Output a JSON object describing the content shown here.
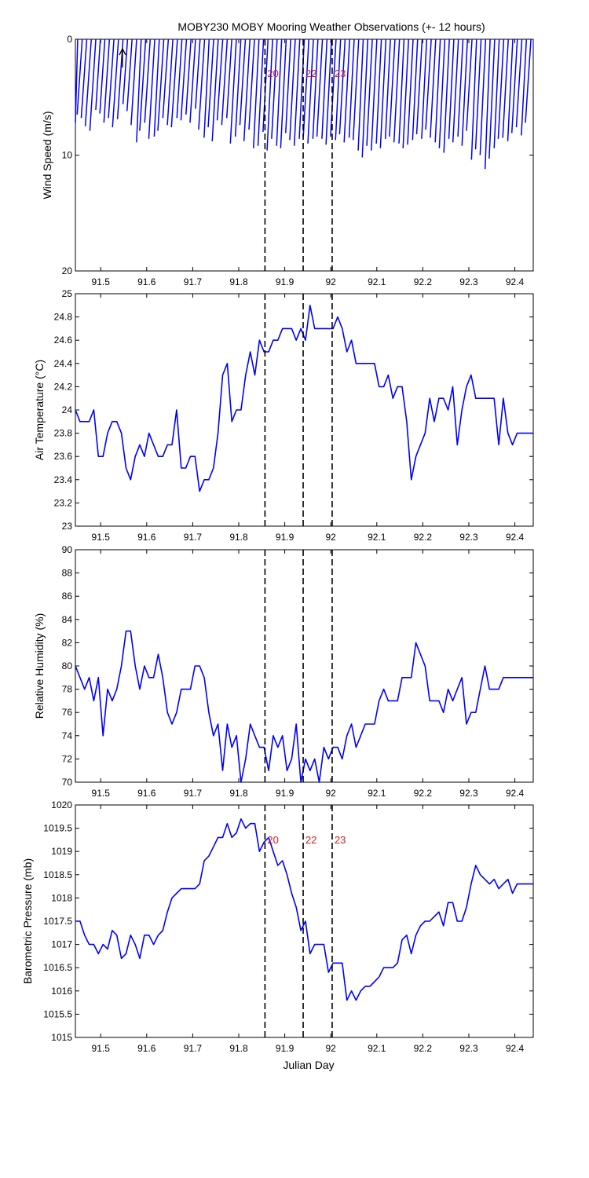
{
  "figure": {
    "title": "MOBY230 MOBY Mooring Weather Observations (+- 12 hours)",
    "xlabel": "Julian Day"
  },
  "colors": {
    "series": "#0000ff",
    "marker": "#000000",
    "marker_label": "#cc2222"
  },
  "chart_data": [
    {
      "type": "line",
      "name": "wind",
      "ylabel": "Wind Speed (m/s)",
      "xlim": [
        91.445,
        92.44
      ],
      "ylim": [
        0,
        20
      ],
      "y_reversed": true,
      "yticks": [
        "0",
        "10",
        "20"
      ],
      "xticks": [
        "91.5",
        "91.6",
        "91.7",
        "91.8",
        "91.9",
        "92",
        "92.1",
        "92.2",
        "92.3",
        "92.4"
      ],
      "wind_speed": [
        7.2,
        6.5,
        6.8,
        7.5,
        7.9,
        6.1,
        6.4,
        7.2,
        6.8,
        7.6,
        6.9,
        5.6,
        6.2,
        7.4,
        8.9,
        7.9,
        7.2,
        8.6,
        8.4,
        7.9,
        6.8,
        7.4,
        7.6,
        6.8,
        7.0,
        6.5,
        7.2,
        6.0,
        7.8,
        8.5,
        7.6,
        8.8,
        7.0,
        7.4,
        6.8,
        9.0,
        8.4,
        7.4,
        8.8,
        7.8,
        9.4,
        9.2,
        8.0,
        9.6,
        8.6,
        9.2,
        9.4,
        8.1,
        8.7,
        9.2,
        8.6,
        8.4,
        9.0,
        8.6,
        8.4,
        8.6,
        9.1,
        8.4,
        8.7,
        8.2,
        8.9,
        8.5,
        8.7,
        9.6,
        10.2,
        9.2,
        9.6,
        9.0,
        9.4,
        8.6,
        8.4,
        8.9,
        9.0,
        9.4,
        9.1,
        8.7,
        8.2,
        8.6,
        7.8,
        8.5,
        8.9,
        9.4,
        9.8,
        8.6,
        8.9,
        8.4,
        9.2,
        7.9,
        10.4,
        9.5,
        10.0,
        11.2,
        10.3,
        9.4,
        8.6,
        8.5,
        8.8,
        8.1,
        7.6,
        8.3,
        7.2
      ],
      "wind_dir_shift": [
        0.011,
        0.011,
        0.012,
        0.013,
        0.013,
        0.01,
        0.011,
        0.012,
        0.012,
        0.013,
        0.012,
        0.01,
        0.011,
        0.012,
        0.01,
        0.013,
        0.012,
        0.013,
        0.011,
        0.013,
        0.012,
        0.012,
        0.013,
        0.011,
        0.012,
        0.011,
        0.012,
        0.01,
        0.013,
        0.011,
        0.012,
        0.013,
        0.012,
        0.012,
        0.011,
        0.013,
        0.012,
        0.012,
        0.013,
        0.012,
        0.012,
        0.012,
        0.011,
        0.012,
        0.012,
        0.011,
        0.012,
        0.011,
        0.012,
        0.012,
        0.011,
        0.012,
        0.012,
        0.011,
        0.012,
        0.011,
        0.012,
        0.012,
        0.011,
        0.012,
        0.012,
        0.011,
        0.012,
        0.011,
        0.012,
        0.012,
        0.012,
        0.011,
        0.012,
        0.011,
        0.012,
        0.012,
        0.011,
        0.012,
        0.012,
        0.011,
        0.012,
        0.011,
        0.012,
        0.012,
        0.011,
        0.012,
        0.012,
        0.011,
        0.012,
        0.011,
        0.012,
        0.012,
        0.011,
        0.012,
        0.012,
        0.011,
        0.012,
        0.011,
        0.012,
        0.012,
        0.011,
        0.012,
        0.012,
        0.011,
        0.012
      ]
    },
    {
      "type": "line",
      "name": "air-temperature",
      "ylabel": "Air Temperature (°C)",
      "xlim": [
        91.445,
        92.44
      ],
      "ylim": [
        23,
        25
      ],
      "yticks": [
        "23",
        "23.2",
        "23.4",
        "23.6",
        "23.8",
        "24",
        "24.2",
        "24.4",
        "24.6",
        "24.8",
        "25"
      ],
      "xticks": [
        "91.5",
        "91.6",
        "91.7",
        "91.8",
        "91.9",
        "92",
        "92.1",
        "92.2",
        "92.3",
        "92.4"
      ],
      "x": [
        91.445,
        91.455,
        91.465,
        91.475,
        91.485,
        91.495,
        91.505,
        91.515,
        91.525,
        91.535,
        91.545,
        91.555,
        91.565,
        91.575,
        91.585,
        91.595,
        91.605,
        91.615,
        91.625,
        91.635,
        91.645,
        91.655,
        91.665,
        91.675,
        91.685,
        91.695,
        91.705,
        91.715,
        91.725,
        91.735,
        91.745,
        91.755,
        91.765,
        91.775,
        91.785,
        91.795,
        91.805,
        91.815,
        91.825,
        91.835,
        91.845,
        91.855,
        91.865,
        91.875,
        91.885,
        91.895,
        91.905,
        91.915,
        91.925,
        91.935,
        91.945,
        91.955,
        91.965,
        91.975,
        91.985,
        91.995,
        92.005,
        92.015,
        92.025,
        92.035,
        92.045,
        92.055,
        92.065,
        92.075,
        92.085,
        92.095,
        92.105,
        92.115,
        92.125,
        92.135,
        92.145,
        92.155,
        92.165,
        92.175,
        92.185,
        92.195,
        92.205,
        92.215,
        92.225,
        92.235,
        92.245,
        92.255,
        92.265,
        92.275,
        92.285,
        92.295,
        92.305,
        92.315,
        92.325,
        92.335,
        92.345,
        92.355,
        92.365,
        92.375,
        92.385,
        92.395,
        92.405,
        92.415,
        92.425,
        92.435,
        92.44
      ],
      "values": [
        24.0,
        23.9,
        23.9,
        23.9,
        24.0,
        23.6,
        23.6,
        23.8,
        23.9,
        23.9,
        23.8,
        23.5,
        23.4,
        23.6,
        23.7,
        23.6,
        23.8,
        23.7,
        23.6,
        23.6,
        23.7,
        23.7,
        24.0,
        23.5,
        23.5,
        23.6,
        23.6,
        23.3,
        23.4,
        23.4,
        23.5,
        23.8,
        24.3,
        24.4,
        23.9,
        24.0,
        24.0,
        24.3,
        24.5,
        24.3,
        24.6,
        24.5,
        24.5,
        24.6,
        24.6,
        24.7,
        24.7,
        24.7,
        24.6,
        24.7,
        24.6,
        24.9,
        24.7,
        24.7,
        24.7,
        24.7,
        24.7,
        24.8,
        24.7,
        24.5,
        24.6,
        24.4,
        24.4,
        24.4,
        24.4,
        24.4,
        24.2,
        24.2,
        24.3,
        24.1,
        24.2,
        24.2,
        23.9,
        23.4,
        23.6,
        23.7,
        23.8,
        24.1,
        23.9,
        24.1,
        24.1,
        24.0,
        24.2,
        23.7,
        24.0,
        24.2,
        24.3,
        24.1,
        24.1,
        24.1,
        24.1,
        24.1,
        23.7,
        24.1,
        23.8,
        23.7,
        23.8,
        23.8,
        23.8,
        23.8,
        23.8
      ]
    },
    {
      "type": "line",
      "name": "relative-humidity",
      "ylabel": "Relative Humidity (%)",
      "xlim": [
        91.445,
        92.44
      ],
      "ylim": [
        70,
        90
      ],
      "yticks": [
        "70",
        "72",
        "74",
        "76",
        "78",
        "80",
        "82",
        "84",
        "86",
        "88",
        "90"
      ],
      "xticks": [
        "91.5",
        "91.6",
        "91.7",
        "91.8",
        "91.9",
        "92",
        "92.1",
        "92.2",
        "92.3",
        "92.4"
      ],
      "x": [
        91.445,
        91.455,
        91.465,
        91.475,
        91.485,
        91.495,
        91.505,
        91.515,
        91.525,
        91.535,
        91.545,
        91.555,
        91.565,
        91.575,
        91.585,
        91.595,
        91.605,
        91.615,
        91.625,
        91.635,
        91.645,
        91.655,
        91.665,
        91.675,
        91.685,
        91.695,
        91.705,
        91.715,
        91.725,
        91.735,
        91.745,
        91.755,
        91.765,
        91.775,
        91.785,
        91.795,
        91.805,
        91.815,
        91.825,
        91.835,
        91.845,
        91.855,
        91.865,
        91.875,
        91.885,
        91.895,
        91.905,
        91.915,
        91.925,
        91.935,
        91.945,
        91.955,
        91.965,
        91.975,
        91.985,
        91.995,
        92.005,
        92.015,
        92.025,
        92.035,
        92.045,
        92.055,
        92.065,
        92.075,
        92.085,
        92.095,
        92.105,
        92.115,
        92.125,
        92.135,
        92.145,
        92.155,
        92.165,
        92.175,
        92.185,
        92.195,
        92.205,
        92.215,
        92.225,
        92.235,
        92.245,
        92.255,
        92.265,
        92.275,
        92.285,
        92.295,
        92.305,
        92.315,
        92.325,
        92.335,
        92.345,
        92.355,
        92.365,
        92.375,
        92.385,
        92.395,
        92.405,
        92.415,
        92.425,
        92.435,
        92.44
      ],
      "values": [
        80,
        79,
        78,
        79,
        77,
        79,
        74,
        78,
        77,
        78,
        80,
        83,
        83,
        80,
        78,
        80,
        79,
        79,
        81,
        79,
        76,
        75,
        76,
        78,
        78,
        78,
        80,
        80,
        79,
        76,
        74,
        75,
        71,
        75,
        73,
        74,
        70,
        72,
        75,
        74,
        73,
        73,
        71,
        74,
        73,
        74,
        71,
        72,
        75,
        70,
        72,
        71,
        72,
        70,
        73,
        72,
        73,
        73,
        72,
        74,
        75,
        73,
        74,
        75,
        75,
        75,
        77,
        78,
        77,
        77,
        77,
        79,
        79,
        79,
        82,
        81,
        80,
        77,
        77,
        77,
        76,
        78,
        77,
        78,
        79,
        75,
        76,
        76,
        78,
        80,
        78,
        78,
        78,
        79,
        79,
        79,
        79,
        79,
        79,
        79,
        79
      ]
    },
    {
      "type": "line",
      "name": "barometric-pressure",
      "ylabel": "Barometric Pressure (mb)",
      "xlim": [
        91.445,
        92.44
      ],
      "ylim": [
        1015,
        1020
      ],
      "yticks": [
        "1015",
        "1015.5",
        "1016",
        "1016.5",
        "1017",
        "1017.5",
        "1018",
        "1018.5",
        "1019",
        "1019.5",
        "1020"
      ],
      "xticks": [
        "91.5",
        "91.6",
        "91.7",
        "91.8",
        "91.9",
        "92",
        "92.1",
        "92.2",
        "92.3",
        "92.4"
      ],
      "x": [
        91.445,
        91.455,
        91.465,
        91.475,
        91.485,
        91.495,
        91.505,
        91.515,
        91.525,
        91.535,
        91.545,
        91.555,
        91.565,
        91.575,
        91.585,
        91.595,
        91.605,
        91.615,
        91.625,
        91.635,
        91.645,
        91.655,
        91.665,
        91.675,
        91.685,
        91.695,
        91.705,
        91.715,
        91.725,
        91.735,
        91.745,
        91.755,
        91.765,
        91.775,
        91.785,
        91.795,
        91.805,
        91.815,
        91.825,
        91.835,
        91.845,
        91.855,
        91.865,
        91.875,
        91.885,
        91.895,
        91.905,
        91.915,
        91.925,
        91.935,
        91.945,
        91.955,
        91.965,
        91.975,
        91.985,
        91.995,
        92.005,
        92.015,
        92.025,
        92.035,
        92.045,
        92.055,
        92.065,
        92.075,
        92.085,
        92.095,
        92.105,
        92.115,
        92.125,
        92.135,
        92.145,
        92.155,
        92.165,
        92.175,
        92.185,
        92.195,
        92.205,
        92.215,
        92.225,
        92.235,
        92.245,
        92.255,
        92.265,
        92.275,
        92.285,
        92.295,
        92.305,
        92.315,
        92.325,
        92.335,
        92.345,
        92.355,
        92.365,
        92.375,
        92.385,
        92.395,
        92.405,
        92.415,
        92.425,
        92.435,
        92.44
      ],
      "values": [
        1017.5,
        1017.5,
        1017.2,
        1017.0,
        1017.0,
        1016.8,
        1017.0,
        1016.9,
        1017.3,
        1017.2,
        1016.7,
        1016.8,
        1017.2,
        1017.0,
        1016.7,
        1017.2,
        1017.2,
        1017.0,
        1017.2,
        1017.3,
        1017.7,
        1018.0,
        1018.1,
        1018.2,
        1018.2,
        1018.2,
        1018.2,
        1018.3,
        1018.8,
        1018.9,
        1019.1,
        1019.3,
        1019.3,
        1019.6,
        1019.3,
        1019.4,
        1019.7,
        1019.5,
        1019.6,
        1019.6,
        1019.0,
        1019.2,
        1019.3,
        1019.0,
        1018.7,
        1018.8,
        1018.5,
        1018.1,
        1017.8,
        1017.3,
        1017.5,
        1016.8,
        1017.0,
        1017.0,
        1017.0,
        1016.4,
        1016.6,
        1016.6,
        1016.6,
        1015.8,
        1016.0,
        1015.8,
        1016.0,
        1016.1,
        1016.1,
        1016.2,
        1016.3,
        1016.5,
        1016.5,
        1016.5,
        1016.6,
        1017.1,
        1017.2,
        1016.8,
        1017.2,
        1017.4,
        1017.5,
        1017.5,
        1017.6,
        1017.7,
        1017.4,
        1017.9,
        1017.9,
        1017.5,
        1017.5,
        1017.8,
        1018.3,
        1018.7,
        1018.5,
        1018.4,
        1018.3,
        1018.4,
        1018.2,
        1018.3,
        1018.4,
        1018.1,
        1018.3,
        1018.3,
        1018.3,
        1018.3,
        1018.3
      ]
    }
  ],
  "markers": [
    {
      "label": "20",
      "x": 91.857
    },
    {
      "label": "22",
      "x": 91.94
    },
    {
      "label": "23",
      "x": 92.003
    }
  ]
}
